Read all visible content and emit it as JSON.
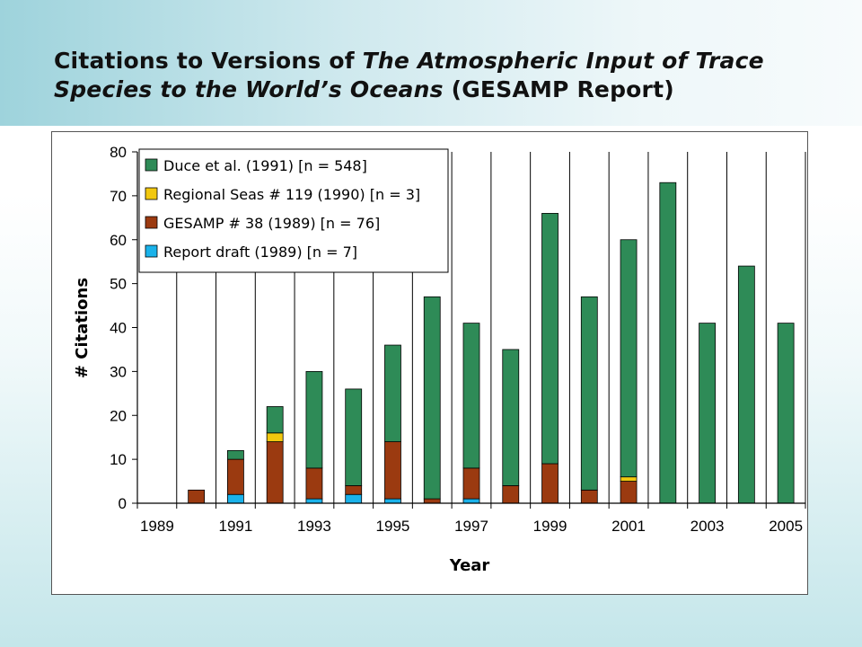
{
  "title": {
    "line1_plain": "Citations to Versions of ",
    "line1_italic": "The Atmospheric Input of Trace",
    "line2_italic": "Species to the World’s Oceans",
    "line2_plain": " (GESAMP Report)"
  },
  "chart_data": {
    "type": "bar",
    "stacked": true,
    "title": "",
    "xlabel": "Year",
    "ylabel": "# Citations",
    "ylim": [
      0,
      80
    ],
    "yticks": [
      0,
      10,
      20,
      30,
      40,
      50,
      60,
      70,
      80
    ],
    "xlim": [
      1989,
      2005
    ],
    "xtick_labels": [
      "1989",
      "1991",
      "1993",
      "1995",
      "1997",
      "1999",
      "2001",
      "2003",
      "2005"
    ],
    "legend_position": "top-left",
    "grid": "vertical",
    "categories": [
      1989,
      1990,
      1991,
      1992,
      1993,
      1994,
      1995,
      1996,
      1997,
      1998,
      1999,
      2000,
      2001,
      2002,
      2003,
      2004,
      2005
    ],
    "series": [
      {
        "name": "Report draft (1989) [n = 7]",
        "color": "#1ab2ea",
        "values": [
          0,
          0,
          2,
          0,
          1,
          2,
          1,
          0,
          1,
          0,
          0,
          0,
          0,
          0,
          0,
          0,
          0
        ]
      },
      {
        "name": "GESAMP # 38 (1989) [n = 76]",
        "color": "#9b3a10",
        "values": [
          0,
          3,
          8,
          14,
          7,
          2,
          13,
          1,
          7,
          4,
          9,
          3,
          5,
          0,
          0,
          0,
          0
        ]
      },
      {
        "name": "Regional Seas # 119 (1990) [n = 3]",
        "color": "#f2c80f",
        "values": [
          0,
          0,
          0,
          2,
          0,
          0,
          0,
          0,
          0,
          0,
          0,
          0,
          1,
          0,
          0,
          0,
          0
        ]
      },
      {
        "name": "Duce et al. (1991) [n = 548]",
        "color": "#2e8b57",
        "values": [
          0,
          0,
          2,
          6,
          22,
          22,
          22,
          46,
          33,
          31,
          57,
          44,
          54,
          73,
          41,
          54,
          41
        ]
      }
    ],
    "legend_order": [
      3,
      2,
      1,
      0
    ]
  }
}
